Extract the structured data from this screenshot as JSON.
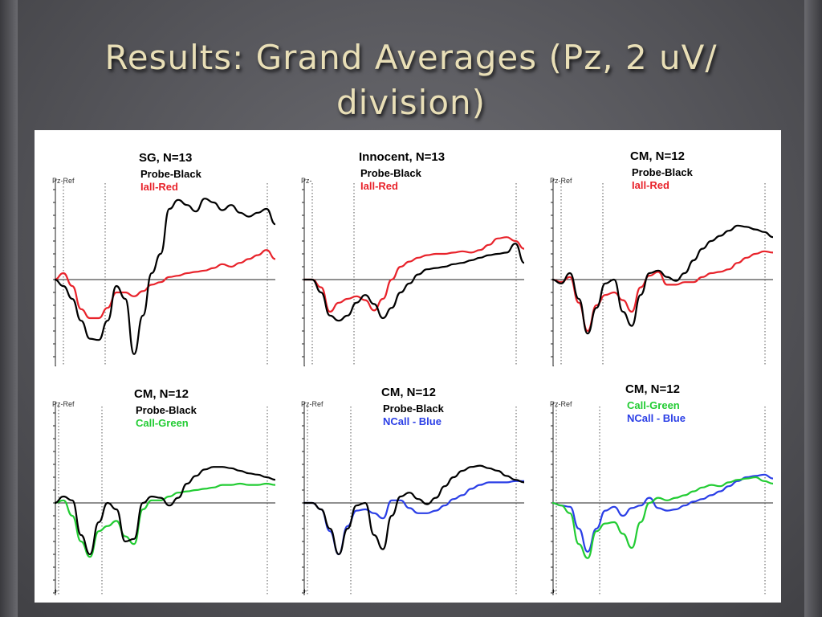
{
  "slide": {
    "title": "Results: Grand Averages (Pz, 2 uV/\ndivision)"
  },
  "colors": {
    "black": "#000000",
    "red": "#e8232b",
    "green": "#22cc33",
    "blue": "#2b3fe6",
    "gridline": "#555555"
  },
  "chart_data": [
    {
      "type": "line",
      "title": "SG, N=13",
      "ref_label": "Pz-Ref",
      "ylim": [
        -8,
        8
      ],
      "x": [
        0,
        0.04,
        0.08,
        0.12,
        0.16,
        0.2,
        0.24,
        0.28,
        0.32,
        0.36,
        0.4,
        0.44,
        0.48,
        0.52,
        0.56,
        0.6,
        0.64,
        0.68,
        0.72,
        0.76,
        0.8,
        0.84,
        0.88,
        0.92,
        0.96,
        1.0
      ],
      "series": [
        {
          "name": "Probe-Black",
          "color": "black",
          "values": [
            0,
            -0.5,
            -1.5,
            -3.2,
            -4.6,
            -4.7,
            -3.2,
            -0.5,
            -1.5,
            -5.8,
            -2.8,
            0.5,
            2.0,
            5.5,
            6.2,
            5.8,
            5.3,
            6.3,
            6.0,
            5.4,
            5.8,
            5.2,
            4.9,
            5.2,
            5.5,
            4.3
          ]
        },
        {
          "name": "Iall-Red",
          "color": "red",
          "values": [
            0,
            0.5,
            -0.5,
            -2.3,
            -3.0,
            -3.0,
            -2.2,
            -1.0,
            -1.0,
            -1.3,
            -0.9,
            -0.4,
            -0.2,
            0.2,
            0.3,
            0.5,
            0.6,
            0.7,
            0.9,
            1.2,
            1.0,
            1.3,
            1.6,
            1.9,
            2.3,
            1.6
          ]
        }
      ]
    },
    {
      "type": "line",
      "title": "Innocent, N=13",
      "ref_label": "Pz-",
      "ylim": [
        -8,
        8
      ],
      "x": [
        0,
        0.04,
        0.08,
        0.12,
        0.16,
        0.2,
        0.24,
        0.28,
        0.32,
        0.36,
        0.4,
        0.44,
        0.48,
        0.52,
        0.56,
        0.6,
        0.64,
        0.68,
        0.72,
        0.76,
        0.8,
        0.84,
        0.88,
        0.92,
        0.96,
        1.0
      ],
      "series": [
        {
          "name": "Probe-Black",
          "color": "black",
          "values": [
            0,
            0,
            -1.0,
            -2.8,
            -3.2,
            -2.8,
            -1.8,
            -1.2,
            -1.9,
            -3.0,
            -2.2,
            -1.0,
            -0.3,
            0.4,
            0.8,
            0.9,
            1.0,
            1.2,
            1.3,
            1.5,
            1.7,
            1.9,
            2.0,
            2.1,
            2.8,
            1.3
          ]
        },
        {
          "name": "Iall-Red",
          "color": "red",
          "values": [
            0,
            0,
            -0.6,
            -2.5,
            -1.8,
            -1.5,
            -1.3,
            -1.6,
            -2.4,
            -1.5,
            0.0,
            1.0,
            1.4,
            1.7,
            1.9,
            2.0,
            2.0,
            2.1,
            2.2,
            2.1,
            2.3,
            2.7,
            3.2,
            3.3,
            3.0,
            2.4
          ]
        }
      ]
    },
    {
      "type": "line",
      "title": "CM, N=12",
      "ref_label": "Pz-Ref",
      "ylim": [
        -8,
        8
      ],
      "x": [
        0,
        0.04,
        0.08,
        0.12,
        0.16,
        0.2,
        0.24,
        0.28,
        0.32,
        0.36,
        0.4,
        0.44,
        0.48,
        0.52,
        0.56,
        0.6,
        0.64,
        0.68,
        0.72,
        0.76,
        0.8,
        0.84,
        0.88,
        0.92,
        0.96,
        1.0
      ],
      "series": [
        {
          "name": "Probe-Black",
          "color": "black",
          "values": [
            0,
            -0.3,
            0.5,
            -1.5,
            -4.2,
            -2.2,
            -0.3,
            0,
            -2.5,
            -3.6,
            -1.2,
            0.5,
            0.7,
            0.2,
            -0.1,
            0.5,
            1.5,
            2.4,
            3.0,
            3.4,
            3.8,
            4.2,
            4.1,
            3.9,
            3.7,
            3.3
          ]
        },
        {
          "name": "Iall-Red",
          "color": "red",
          "values": [
            0,
            -0.2,
            0.2,
            -1.8,
            -4.0,
            -2.0,
            -1.2,
            -1.0,
            -1.6,
            -2.5,
            -0.6,
            0.3,
            0.6,
            -0.4,
            -0.4,
            -0.2,
            -0.2,
            0.2,
            0.5,
            0.6,
            0.8,
            1.3,
            1.7,
            2.0,
            2.2,
            2.1
          ]
        }
      ]
    },
    {
      "type": "line",
      "title": "CM, N=12",
      "ref_label": "Pz-Ref",
      "ylim": [
        -8,
        8
      ],
      "x": [
        0,
        0.04,
        0.08,
        0.12,
        0.16,
        0.2,
        0.24,
        0.28,
        0.32,
        0.36,
        0.4,
        0.44,
        0.48,
        0.52,
        0.56,
        0.6,
        0.64,
        0.68,
        0.72,
        0.76,
        0.8,
        0.84,
        0.88,
        0.92,
        0.96,
        1.0
      ],
      "series": [
        {
          "name": "Probe-Black",
          "color": "black",
          "values": [
            0,
            0.5,
            0.2,
            -2.5,
            -4.0,
            -1.5,
            0,
            -0.5,
            -3.0,
            -2.8,
            0.0,
            0.5,
            0.4,
            -0.2,
            0.4,
            1.5,
            2.1,
            2.6,
            2.8,
            2.8,
            2.7,
            2.5,
            2.3,
            2.2,
            2.0,
            1.8
          ]
        },
        {
          "name": "Call-Green",
          "color": "green",
          "values": [
            0,
            0.2,
            -1.0,
            -3.0,
            -4.2,
            -2.2,
            -1.8,
            -1.4,
            -2.6,
            -3.2,
            -0.5,
            0.2,
            0.2,
            0.5,
            0.8,
            0.9,
            1.0,
            1.1,
            1.2,
            1.4,
            1.4,
            1.5,
            1.4,
            1.4,
            1.5,
            1.4
          ]
        }
      ]
    },
    {
      "type": "line",
      "title": "CM, N=12",
      "ref_label": "Pz-Ref",
      "ylim": [
        -8,
        8
      ],
      "x": [
        0,
        0.04,
        0.08,
        0.12,
        0.16,
        0.2,
        0.24,
        0.28,
        0.32,
        0.36,
        0.4,
        0.44,
        0.48,
        0.52,
        0.56,
        0.6,
        0.64,
        0.68,
        0.72,
        0.76,
        0.8,
        0.84,
        0.88,
        0.92,
        0.96,
        1.0
      ],
      "series": [
        {
          "name": "Probe-Black",
          "color": "black",
          "values": [
            0,
            0,
            -0.5,
            -2.0,
            -4.0,
            -2.0,
            -0.2,
            0,
            -2.5,
            -3.6,
            -1.0,
            0.5,
            0.8,
            0.3,
            -0.1,
            0.4,
            1.3,
            2.0,
            2.5,
            2.8,
            2.9,
            2.7,
            2.5,
            2.1,
            1.8,
            1.6
          ]
        },
        {
          "name": "NCall - Blue",
          "color": "blue",
          "values": [
            0,
            0,
            -0.5,
            -2.2,
            -4.0,
            -1.8,
            -0.6,
            -0.5,
            -0.8,
            -1.2,
            0.2,
            0.2,
            -0.4,
            -0.8,
            -0.8,
            -0.6,
            -0.2,
            0.3,
            0.6,
            1.1,
            1.4,
            1.6,
            1.6,
            1.6,
            1.7,
            1.7
          ]
        }
      ]
    },
    {
      "type": "line",
      "title": "CM, N=12",
      "ref_label": "Pz-Ref",
      "ylim": [
        -8,
        8
      ],
      "x": [
        0,
        0.04,
        0.08,
        0.12,
        0.16,
        0.2,
        0.24,
        0.28,
        0.32,
        0.36,
        0.4,
        0.44,
        0.48,
        0.52,
        0.56,
        0.6,
        0.64,
        0.68,
        0.72,
        0.76,
        0.8,
        0.84,
        0.88,
        0.92,
        0.96,
        1.0
      ],
      "series": [
        {
          "name": "Call-Green",
          "color": "green",
          "values": [
            0,
            -0.2,
            -0.8,
            -3.2,
            -4.3,
            -2.2,
            -1.6,
            -1.5,
            -2.4,
            -3.5,
            -1.5,
            0.0,
            0.4,
            0.2,
            0.4,
            0.6,
            0.9,
            1.2,
            1.4,
            1.3,
            1.6,
            1.8,
            1.9,
            2.0,
            1.7,
            1.5
          ]
        },
        {
          "name": "NCall - Blue",
          "color": "blue",
          "values": [
            0,
            -0.2,
            -0.3,
            -2.0,
            -3.8,
            -2.0,
            -0.6,
            -0.3,
            -1.0,
            -0.4,
            -0.2,
            0.4,
            -0.4,
            -0.6,
            -0.5,
            -0.2,
            0.1,
            0.3,
            0.6,
            0.9,
            1.3,
            1.7,
            2.0,
            2.1,
            2.2,
            1.9
          ]
        }
      ]
    }
  ]
}
